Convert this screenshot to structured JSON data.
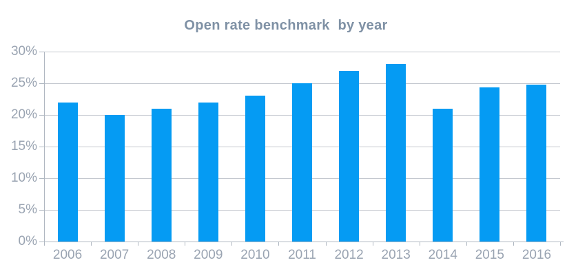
{
  "chart_data": {
    "type": "bar",
    "title": "Open rate benchmark  by year",
    "categories": [
      "2006",
      "2007",
      "2008",
      "2009",
      "2010",
      "2011",
      "2012",
      "2013",
      "2014",
      "2015",
      "2016"
    ],
    "values": [
      22,
      20,
      21,
      22,
      23,
      25,
      27,
      28,
      21,
      24.4,
      24.8
    ],
    "xlabel": "",
    "ylabel": "",
    "ylim": [
      0,
      30
    ],
    "ytick_step": 5,
    "ytick_labels": [
      "0%",
      "5%",
      "10%",
      "15%",
      "20%",
      "25%",
      "30%"
    ],
    "grid": "horizontal",
    "legend_position": "none",
    "colors": {
      "bar": "#059BF3",
      "gridline": "#C3C7CE",
      "axis": "#AFB7C1",
      "tick_label": "#9AA4B2",
      "title": "#7F91A5",
      "background": "#FFFFFF"
    }
  }
}
